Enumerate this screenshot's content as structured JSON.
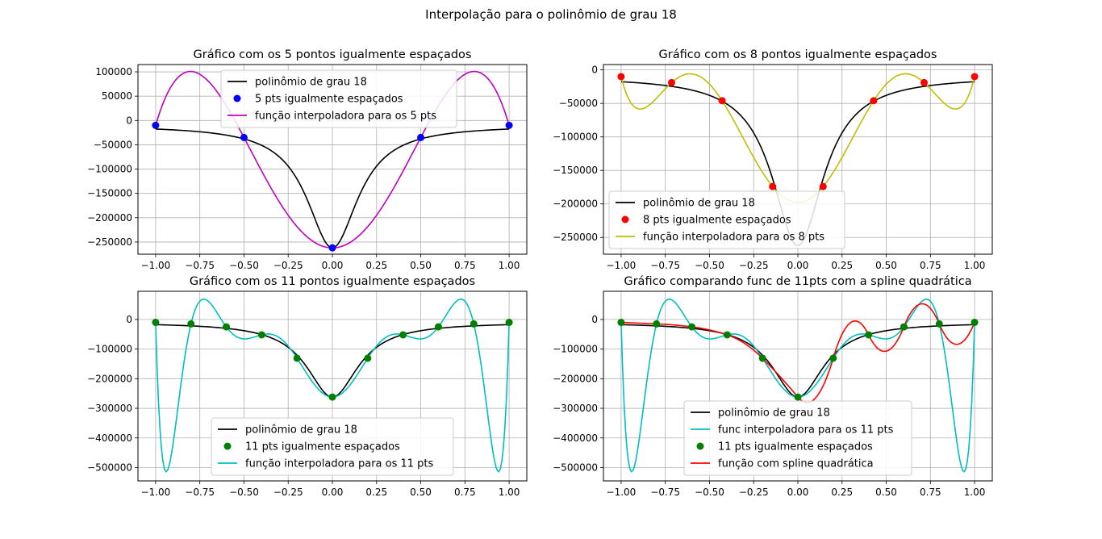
{
  "figure_title": "Interpolação para o polinômio de grau 18",
  "colors": {
    "poly": "#000000",
    "grid": "#b0b0b0",
    "spline": "#d62728"
  },
  "chart_data": [
    {
      "type": "line",
      "title": "Gráfico com os 5 pontos igualmente espaçados",
      "xlim": [
        -1.1,
        1.1
      ],
      "ylim": [
        -275000,
        115000
      ],
      "xticks": [
        -1.0,
        -0.75,
        -0.5,
        -0.25,
        0.0,
        0.25,
        0.5,
        0.75,
        1.0
      ],
      "xtick_labels": [
        "−1.00",
        "−0.75",
        "−0.50",
        "−0.25",
        "0.00",
        "0.25",
        "0.50",
        "0.75",
        "1.00"
      ],
      "yticks": [
        -250000,
        -200000,
        -150000,
        -100000,
        -50000,
        0,
        50000,
        100000
      ],
      "ytick_labels": [
        "−250000",
        "−200000",
        "−150000",
        "−100000",
        "−50000",
        "0",
        "50000",
        "100000"
      ],
      "grid": true,
      "legend": "top-center",
      "series": [
        {
          "name": "polinômio de grau 18",
          "kind": "line",
          "color": "#000000",
          "fn": "poly"
        },
        {
          "name": "5 pts igualmente espaçados",
          "kind": "points",
          "color": "#0000ff",
          "x": [
            -1.0,
            -0.5,
            0.0,
            0.5,
            1.0
          ],
          "y": [
            -10000,
            -35000,
            -262000,
            -35000,
            -10000
          ]
        },
        {
          "name": "função interpoladora para os 5 pts",
          "kind": "line",
          "color": "#bf00bf",
          "fn": "interp",
          "x": [
            -1.0,
            -0.5,
            0.0,
            0.5,
            1.0
          ],
          "y": [
            -10000,
            -35000,
            -262000,
            -35000,
            -10000
          ]
        }
      ]
    },
    {
      "type": "line",
      "title": "Gráfico com os 8 pontos igualmente espaçados",
      "xlim": [
        -1.1,
        1.1
      ],
      "ylim": [
        -275000,
        8000
      ],
      "xticks": [
        -1.0,
        -0.75,
        -0.5,
        -0.25,
        0.0,
        0.25,
        0.5,
        0.75,
        1.0
      ],
      "xtick_labels": [
        "−1.00",
        "−0.75",
        "−0.50",
        "−0.25",
        "0.00",
        "0.25",
        "0.50",
        "0.75",
        "1.00"
      ],
      "yticks": [
        -250000,
        -200000,
        -150000,
        -100000,
        -50000,
        0
      ],
      "ytick_labels": [
        "−250000",
        "−200000",
        "−150000",
        "−100000",
        "−50000",
        "0"
      ],
      "grid": true,
      "legend": "lower-left",
      "series": [
        {
          "name": "polinômio de grau 18",
          "kind": "line",
          "color": "#000000",
          "fn": "poly"
        },
        {
          "name": "8 pts igualmente espaçados",
          "kind": "points",
          "color": "#ff0000",
          "x": [
            -1.0,
            -0.7143,
            -0.4286,
            -0.1429,
            0.1429,
            0.4286,
            0.7143,
            1.0
          ],
          "y": [
            -10000,
            -19000,
            -46000,
            -174000,
            -174000,
            -46000,
            -19000,
            -10000
          ]
        },
        {
          "name": "função interpoladora para os 8 pts",
          "kind": "line",
          "color": "#bfbf00",
          "fn": "interp",
          "x": [
            -1.0,
            -0.7143,
            -0.4286,
            -0.1429,
            0.1429,
            0.4286,
            0.7143,
            1.0
          ],
          "y": [
            -10000,
            -19000,
            -46000,
            -174000,
            -174000,
            -46000,
            -19000,
            -10000
          ]
        }
      ]
    },
    {
      "type": "line",
      "title": "Gráfico com os 11 pontos igualmente espaçados",
      "xlim": [
        -1.1,
        1.1
      ],
      "ylim": [
        -545000,
        95000
      ],
      "xticks": [
        -1.0,
        -0.75,
        -0.5,
        -0.25,
        0.0,
        0.25,
        0.5,
        0.75,
        1.0
      ],
      "xtick_labels": [
        "−1.00",
        "−0.75",
        "−0.50",
        "−0.25",
        "0.00",
        "0.25",
        "0.50",
        "0.75",
        "1.00"
      ],
      "yticks": [
        -500000,
        -400000,
        -300000,
        -200000,
        -100000,
        0
      ],
      "ytick_labels": [
        "−500000",
        "−400000",
        "−300000",
        "−200000",
        "−100000",
        "0"
      ],
      "grid": true,
      "legend": "lower-center",
      "series": [
        {
          "name": "polinômio de grau 18",
          "kind": "line",
          "color": "#000000",
          "fn": "poly"
        },
        {
          "name": "11 pts igualmente espaçados",
          "kind": "points",
          "color": "#008000",
          "x": [
            -1.0,
            -0.8,
            -0.6,
            -0.4,
            -0.2,
            0.0,
            0.2,
            0.4,
            0.6,
            0.8,
            1.0
          ],
          "y": [
            -10000,
            -15000,
            -25000,
            -52000,
            -131000,
            -262000,
            -131000,
            -52000,
            -25000,
            -15000,
            -10000
          ]
        },
        {
          "name": "função interpoladora para os 11 pts",
          "kind": "line",
          "color": "#00bfbf",
          "fn": "interp",
          "x": [
            -1.0,
            -0.8,
            -0.6,
            -0.4,
            -0.2,
            0.0,
            0.2,
            0.4,
            0.6,
            0.8,
            1.0
          ],
          "y": [
            -10000,
            -15000,
            -25000,
            -52000,
            -131000,
            -262000,
            -131000,
            -52000,
            -25000,
            -15000,
            -10000
          ]
        }
      ]
    },
    {
      "type": "line",
      "title": "Gráfico comparando func de 11pts com a spline quadrática",
      "xlim": [
        -1.1,
        1.1
      ],
      "ylim": [
        -545000,
        95000
      ],
      "xticks": [
        -1.0,
        -0.75,
        -0.5,
        -0.25,
        0.0,
        0.25,
        0.5,
        0.75,
        1.0
      ],
      "xtick_labels": [
        "−1.00",
        "−0.75",
        "−0.50",
        "−0.25",
        "0.00",
        "0.25",
        "0.50",
        "0.75",
        "1.00"
      ],
      "yticks": [
        -500000,
        -400000,
        -300000,
        -200000,
        -100000,
        0
      ],
      "ytick_labels": [
        "−500000",
        "−400000",
        "−300000",
        "−200000",
        "−100000",
        "0"
      ],
      "grid": true,
      "legend": "lower-center",
      "series": [
        {
          "name": "polinômio de grau 18",
          "kind": "line",
          "color": "#000000",
          "fn": "poly"
        },
        {
          "name": "func interpoladora para os 11 pts",
          "kind": "line",
          "color": "#00bfbf",
          "fn": "interp",
          "x": [
            -1.0,
            -0.8,
            -0.6,
            -0.4,
            -0.2,
            0.0,
            0.2,
            0.4,
            0.6,
            0.8,
            1.0
          ],
          "y": [
            -10000,
            -15000,
            -25000,
            -52000,
            -131000,
            -262000,
            -131000,
            -52000,
            -25000,
            -15000,
            -10000
          ]
        },
        {
          "name": "11 pts igualmente espaçados",
          "kind": "points",
          "color": "#008000",
          "x": [
            -1.0,
            -0.8,
            -0.6,
            -0.4,
            -0.2,
            0.0,
            0.2,
            0.4,
            0.6,
            0.8,
            1.0
          ],
          "y": [
            -10000,
            -15000,
            -25000,
            -52000,
            -131000,
            -262000,
            -131000,
            -52000,
            -25000,
            -15000,
            -10000
          ]
        },
        {
          "name": "função com spline quadrática",
          "kind": "line",
          "color": "#ff0000",
          "fn": "spline",
          "x": [
            -1.0,
            -0.8,
            -0.6,
            -0.4,
            -0.2,
            0.0,
            0.2,
            0.4,
            0.6,
            0.8,
            1.0
          ],
          "y": [
            -10000,
            -15000,
            -25000,
            -52000,
            -131000,
            -262000,
            -131000,
            -52000,
            -25000,
            -15000,
            -10000
          ]
        }
      ]
    }
  ]
}
